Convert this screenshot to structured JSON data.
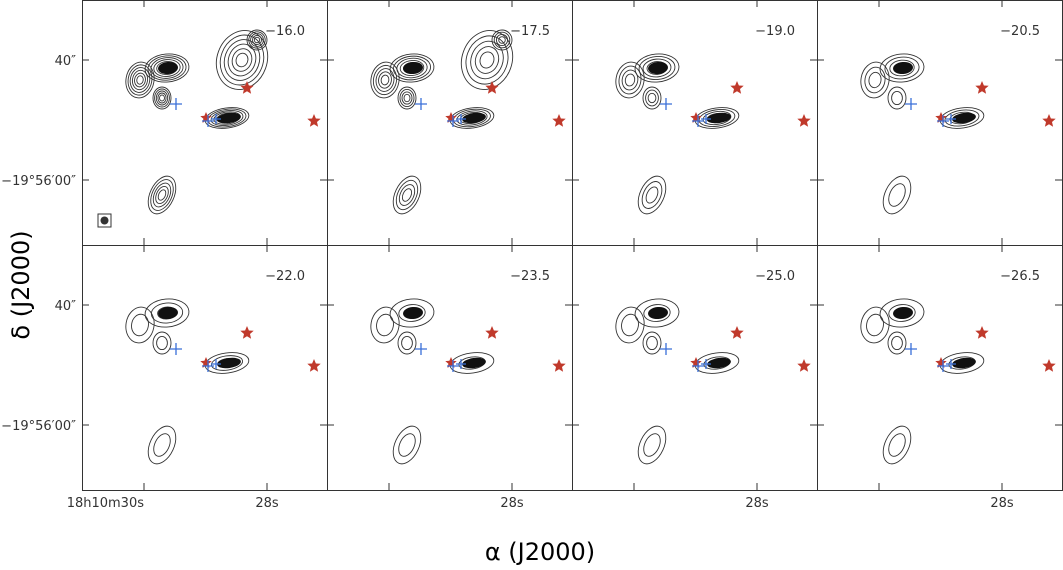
{
  "chart_data": {
    "type": "channel-map",
    "xlabel": "α (J2000)",
    "ylabel": "δ (J2000)",
    "xticks": [
      {
        "value": "30",
        "label": "18h10m30s",
        "show_in_bottom_row": "first"
      },
      {
        "value": "28",
        "label": "28s",
        "show_in_bottom_row": "all"
      }
    ],
    "yticks": [
      {
        "value": "40",
        "label": "40″"
      },
      {
        "value": "-19:56:00",
        "label": "−19°56′00″"
      }
    ],
    "beam_shown": true,
    "panels": [
      {
        "velocity": "−16.0"
      },
      {
        "velocity": "−17.5"
      },
      {
        "velocity": "−19.0"
      },
      {
        "velocity": "−20.5"
      },
      {
        "velocity": "−22.0"
      },
      {
        "velocity": "−23.5"
      },
      {
        "velocity": "−25.0"
      },
      {
        "velocity": "−26.5"
      }
    ],
    "markers": {
      "red_star_color": "#c0392b",
      "blue_plus_color": "#3a6fd8",
      "contour_color": "#333333"
    }
  }
}
